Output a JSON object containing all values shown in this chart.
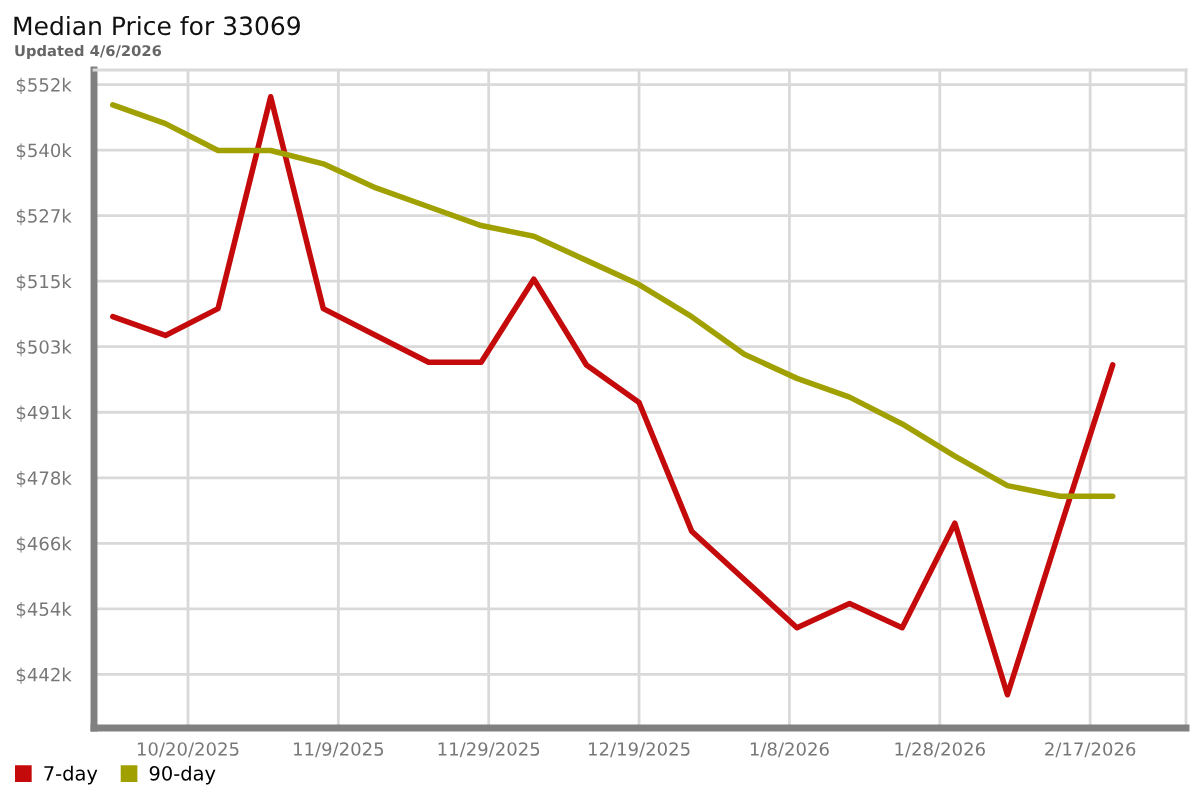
{
  "chart_data": {
    "type": "line",
    "title": "Median Price for 33069",
    "subtitle": "Updated 4/6/2026",
    "x": [
      "2025-10-10",
      "2025-10-17",
      "2025-10-24",
      "2025-10-31",
      "2025-11-07",
      "2025-11-14",
      "2025-11-21",
      "2025-11-28",
      "2025-12-05",
      "2025-12-12",
      "2025-12-19",
      "2025-12-26",
      "2026-01-02",
      "2026-01-09",
      "2026-01-16",
      "2026-01-23",
      "2026-01-30",
      "2026-02-06",
      "2026-02-13",
      "2026-02-20"
    ],
    "series": [
      {
        "name": "7-day",
        "color": "#c40a0a",
        "values": [
          508500,
          505000,
          510000,
          549500,
          510000,
          505000,
          500000,
          500000,
          515500,
          499500,
          492500,
          468500,
          459500,
          450500,
          455000,
          450500,
          470000,
          438000,
          469000,
          499500
        ]
      },
      {
        "name": "90-day",
        "color": "#a0a000",
        "values": [
          548000,
          544500,
          539500,
          539500,
          537000,
          532500,
          529000,
          525500,
          523500,
          519000,
          514500,
          508500,
          501500,
          497000,
          493500,
          488500,
          482500,
          477000,
          475000,
          475000
        ]
      }
    ],
    "xlim": [
      "2025-10-07T12:00",
      "2026-03-01T18:00"
    ],
    "xticks": [
      {
        "value": "2025-10-20",
        "label": "10/20/2025"
      },
      {
        "value": "2025-11-09",
        "label": "11/9/2025"
      },
      {
        "value": "2025-11-29",
        "label": "11/29/2025"
      },
      {
        "value": "2025-12-19",
        "label": "12/19/2025"
      },
      {
        "value": "2026-01-08",
        "label": "1/8/2026"
      },
      {
        "value": "2026-01-28",
        "label": "1/28/2026"
      },
      {
        "value": "2026-02-17",
        "label": "2/17/2026"
      }
    ],
    "ylim": [
      431800,
      554500
    ],
    "yticks": [
      {
        "value": 441800,
        "label": "$442k"
      },
      {
        "value": 454020,
        "label": "$454k"
      },
      {
        "value": 466240,
        "label": "$466k"
      },
      {
        "value": 478460,
        "label": "$478k"
      },
      {
        "value": 490680,
        "label": "$491k"
      },
      {
        "value": 502900,
        "label": "$503k"
      },
      {
        "value": 515120,
        "label": "$515k"
      },
      {
        "value": 527340,
        "label": "$527k"
      },
      {
        "value": 539560,
        "label": "$540k"
      },
      {
        "value": 551780,
        "label": "$552k"
      }
    ],
    "grid": true,
    "legend": "bottom left"
  }
}
